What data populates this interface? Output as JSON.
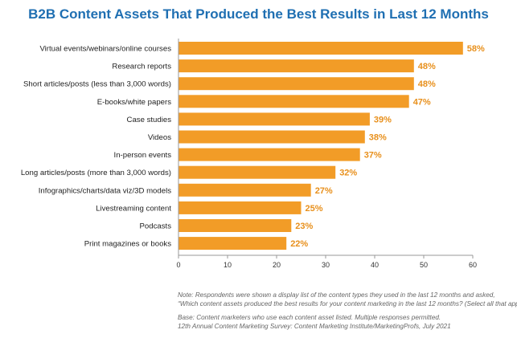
{
  "title": "B2B Content Assets That Produced the Best Results in Last 12 Months",
  "colors": {
    "bar": "#f29c27",
    "value_label": "#e8901c",
    "title": "#1f6fb2",
    "category_text": "#222222",
    "axis": "#999999"
  },
  "chart_data": {
    "type": "bar",
    "orientation": "horizontal",
    "title": "B2B Content Assets That Produced the Best Results in Last 12 Months",
    "xlabel": "",
    "ylabel": "",
    "xlim": [
      0,
      60
    ],
    "xticks": [
      0,
      10,
      20,
      30,
      40,
      50,
      60
    ],
    "grid": false,
    "categories": [
      "Virtual events/webinars/online courses",
      "Research reports",
      "Short articles/posts (less than 3,000 words)",
      "E-books/white papers",
      "Case studies",
      "Videos",
      "In-person events",
      "Long articles/posts (more than 3,000 words)",
      "Infographics/charts/data viz/3D models",
      "Livestreaming content",
      "Podcasts",
      "Print magazines or books"
    ],
    "values": [
      58,
      48,
      48,
      47,
      39,
      38,
      37,
      32,
      27,
      25,
      23,
      22
    ],
    "value_labels": [
      "58%",
      "48%",
      "48%",
      "47%",
      "39%",
      "38%",
      "37%",
      "32%",
      "27%",
      "25%",
      "23%",
      "22%"
    ]
  },
  "notes": {
    "line1": "Note: Respondents were shown a display list of the content types they used in the last 12 months and asked,",
    "line2": "“Which content assets produced the best results for your content marketing in the last 12 months? (Select all that apply.)”",
    "line3": "Base: Content marketers who use each content asset listed. Multiple responses permitted.",
    "line4": "12th Annual Content Marketing Survey: Content Marketing Institute/MarketingProfs, July 2021"
  }
}
